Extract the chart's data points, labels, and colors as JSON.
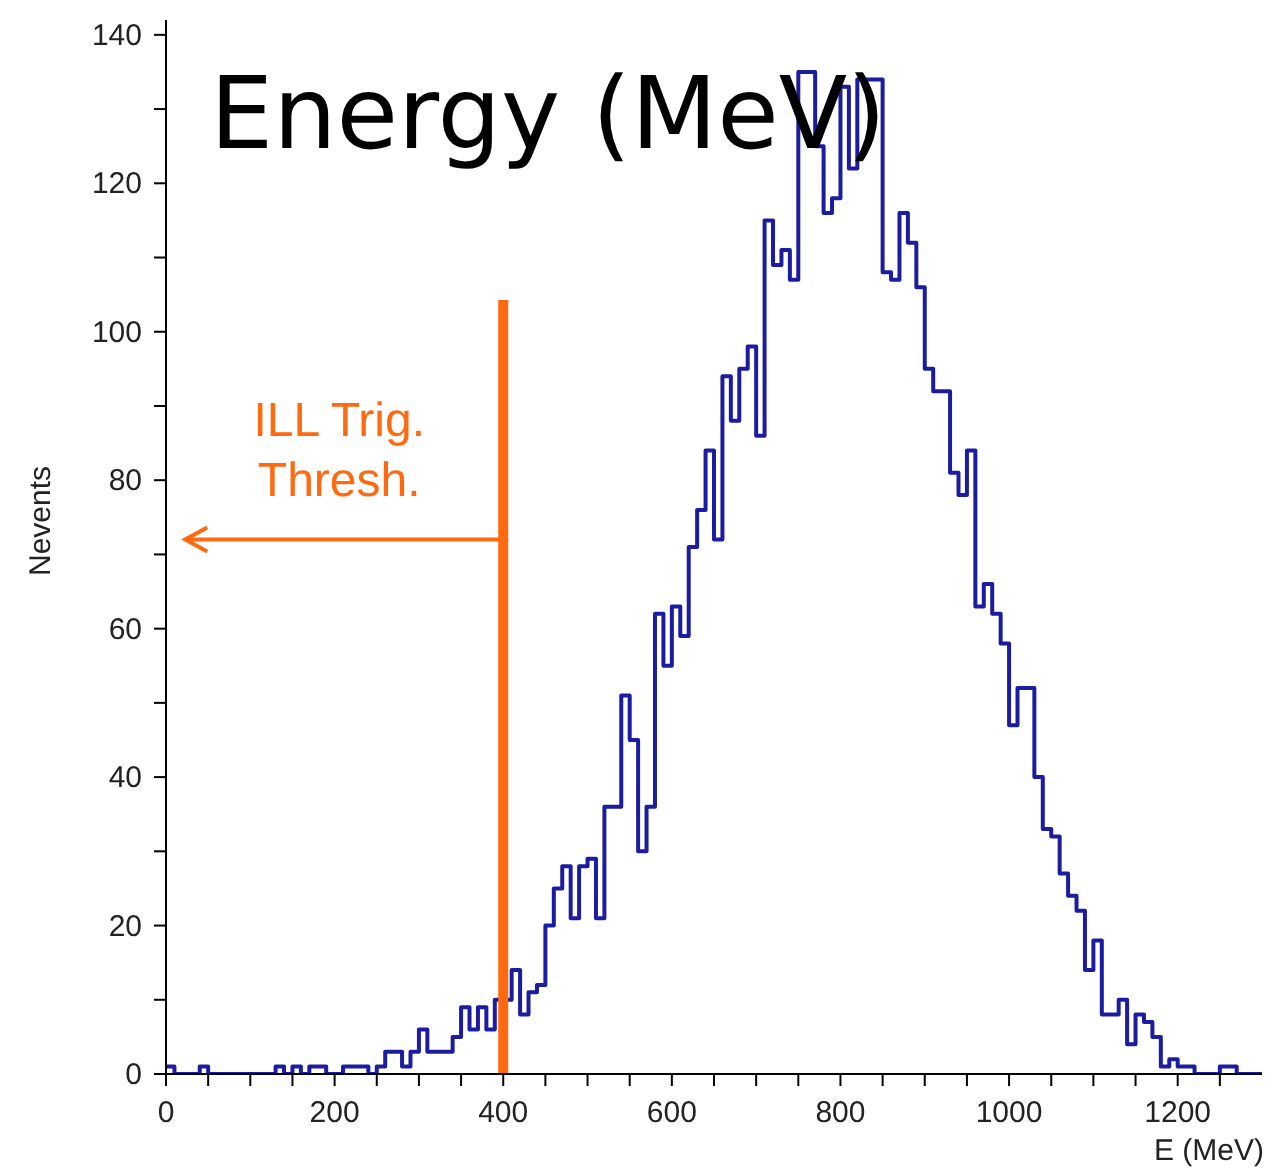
{
  "chart_data": {
    "type": "histogram",
    "title": "Energy (MeV)",
    "xlabel": "E (MeV)",
    "ylabel": "Nevents",
    "bins": [
      0,
      10,
      20,
      30,
      40,
      50,
      60,
      70,
      80,
      90,
      100,
      110,
      120,
      130,
      140,
      150,
      160,
      170,
      180,
      190,
      200,
      210,
      220,
      230,
      240,
      250,
      260,
      270,
      280,
      290,
      300,
      310,
      320,
      330,
      340,
      350,
      360,
      370,
      380,
      390,
      400,
      410,
      420,
      430,
      440,
      450,
      460,
      470,
      480,
      490,
      500,
      510,
      520,
      530,
      540,
      550,
      560,
      570,
      580,
      590,
      600,
      610,
      620,
      630,
      640,
      650,
      660,
      670,
      680,
      690,
      700,
      710,
      720,
      730,
      740,
      750,
      760,
      770,
      780,
      790,
      800,
      810,
      820,
      830,
      840,
      850,
      860,
      870,
      880,
      890,
      900,
      910,
      920,
      930,
      940,
      950,
      960,
      970,
      980,
      990,
      1000,
      1010,
      1020,
      1030,
      1040,
      1050,
      1060,
      1070,
      1080,
      1090,
      1100,
      1110,
      1120,
      1130,
      1140,
      1150,
      1160,
      1170,
      1180,
      1190,
      1200,
      1210,
      1220,
      1230,
      1240,
      1250,
      1260,
      1270,
      1280,
      1290,
      1300
    ],
    "values": [
      1,
      0,
      0,
      0,
      1,
      0,
      0,
      0,
      0,
      0,
      0,
      0,
      0,
      1,
      0,
      1,
      0,
      1,
      1,
      0,
      0,
      1,
      1,
      1,
      0,
      1,
      3,
      3,
      1,
      3,
      6,
      3,
      3,
      3,
      5,
      9,
      6,
      9,
      6,
      10,
      10,
      14,
      8,
      11,
      12,
      20,
      25,
      28,
      21,
      28,
      29,
      21,
      36,
      36,
      51,
      45,
      30,
      36,
      62,
      55,
      63,
      59,
      71,
      76,
      84,
      72,
      94,
      88,
      95,
      98,
      86,
      115,
      109,
      111,
      107,
      135,
      135,
      125,
      116,
      118,
      133,
      122,
      134,
      134,
      134,
      108,
      107,
      116,
      112,
      106,
      95,
      92,
      92,
      81,
      78,
      84,
      63,
      66,
      62,
      58,
      47,
      52,
      52,
      40,
      33,
      32,
      27,
      24,
      22,
      14,
      18,
      8,
      8,
      10,
      4,
      8,
      7,
      5,
      1,
      2,
      1,
      1,
      0,
      0,
      0,
      1,
      1,
      0,
      0,
      0
    ],
    "color": "#1c1ca0",
    "xlim": [
      0,
      1300
    ],
    "xticks": [
      0,
      {
        "value": 50,
        "label": null
      },
      {
        "value": 100,
        "label": null
      },
      {
        "value": 150,
        "label": null
      },
      200,
      {
        "value": 250,
        "label": null
      },
      {
        "value": 300,
        "label": null
      },
      {
        "value": 350,
        "label": null
      },
      400,
      {
        "value": 450,
        "label": null
      },
      {
        "value": 500,
        "label": null
      },
      {
        "value": 550,
        "label": null
      },
      600,
      {
        "value": 650,
        "label": null
      },
      {
        "value": 700,
        "label": null
      },
      {
        "value": 750,
        "label": null
      },
      800,
      {
        "value": 850,
        "label": null
      },
      {
        "value": 900,
        "label": null
      },
      {
        "value": 950,
        "label": null
      },
      1000,
      {
        "value": 1050,
        "label": null
      },
      {
        "value": 1100,
        "label": null
      },
      {
        "value": 1150,
        "label": null
      },
      1200,
      {
        "value": 1250,
        "label": null
      }
    ],
    "ylim": [
      0,
      142
    ],
    "yticks": [
      0,
      {
        "value": 10,
        "label": null
      },
      20,
      {
        "value": 30,
        "label": null
      },
      40,
      {
        "value": 50,
        "label": null
      },
      60,
      {
        "value": 70,
        "label": null
      },
      80,
      {
        "value": 90,
        "label": null
      },
      100,
      {
        "value": 110,
        "label": null
      },
      120,
      {
        "value": 130,
        "label": null
      },
      140
    ],
    "ref_lines": [
      {
        "axis": "x",
        "value": 400,
        "label": "ILL Trig.\nThresh.",
        "color": "#ff6a10"
      }
    ],
    "grid": false,
    "legend": false
  }
}
